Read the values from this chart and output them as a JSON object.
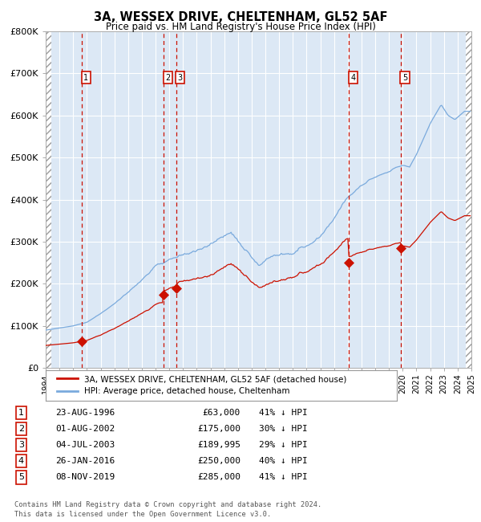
{
  "title": "3A, WESSEX DRIVE, CHELTENHAM, GL52 5AF",
  "subtitle": "Price paid vs. HM Land Registry's House Price Index (HPI)",
  "ylim": [
    0,
    800000
  ],
  "yticks": [
    0,
    100000,
    200000,
    300000,
    400000,
    500000,
    600000,
    700000,
    800000
  ],
  "ytick_labels": [
    "£0",
    "£100K",
    "£200K",
    "£300K",
    "£400K",
    "£500K",
    "£600K",
    "£700K",
    "£800K"
  ],
  "hpi_color": "#7aaadd",
  "price_color": "#cc1100",
  "bg_color": "#dce8f5",
  "grid_color": "#ffffff",
  "vline_color": "#cc1100",
  "transactions": [
    {
      "num": 1,
      "date_x": 1996.64,
      "price": 63000,
      "label": "23-AUG-1996",
      "price_str": "£63,000",
      "hpi_pct": "41% ↓ HPI"
    },
    {
      "num": 2,
      "date_x": 2002.58,
      "price": 175000,
      "label": "01-AUG-2002",
      "price_str": "£175,000",
      "hpi_pct": "30% ↓ HPI"
    },
    {
      "num": 3,
      "date_x": 2003.5,
      "price": 189995,
      "label": "04-JUL-2003",
      "price_str": "£189,995",
      "hpi_pct": "29% ↓ HPI"
    },
    {
      "num": 4,
      "date_x": 2016.07,
      "price": 250000,
      "label": "26-JAN-2016",
      "price_str": "£250,000",
      "hpi_pct": "40% ↓ HPI"
    },
    {
      "num": 5,
      "date_x": 2019.85,
      "price": 285000,
      "label": "08-NOV-2019",
      "price_str": "£285,000",
      "hpi_pct": "41% ↓ HPI"
    }
  ],
  "legend_house_label": "3A, WESSEX DRIVE, CHELTENHAM, GL52 5AF (detached house)",
  "legend_hpi_label": "HPI: Average price, detached house, Cheltenham",
  "footer": "Contains HM Land Registry data © Crown copyright and database right 2024.\nThis data is licensed under the Open Government Licence v3.0.",
  "xmin": 1994,
  "xmax": 2025
}
